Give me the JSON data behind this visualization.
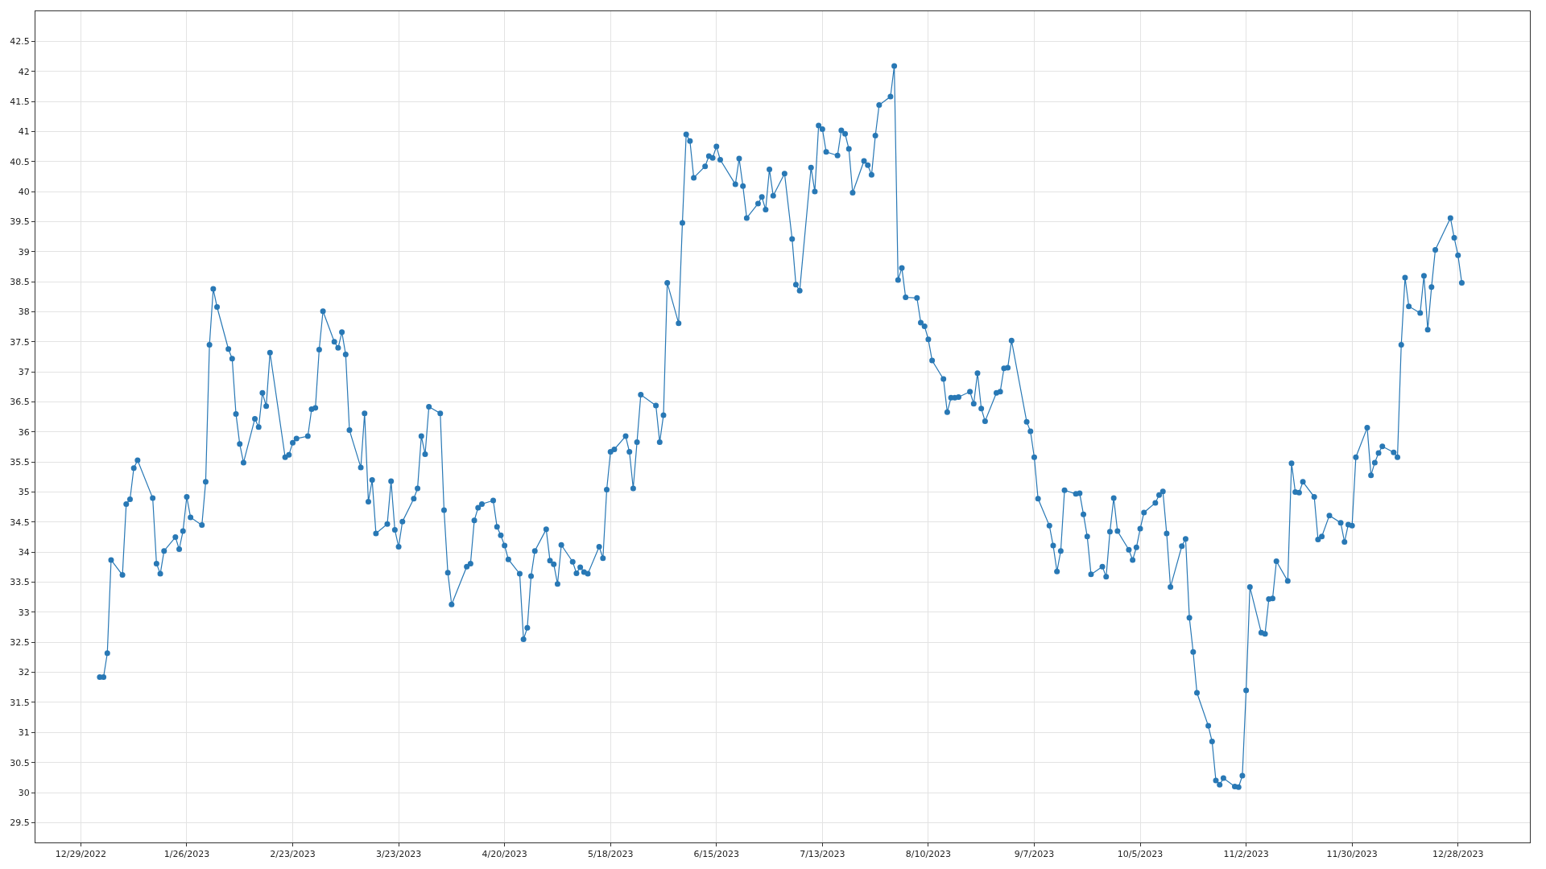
{
  "chart_data": {
    "type": "line",
    "marker": "circle",
    "line_style": "solid",
    "grid": true,
    "xlim": [
      "2022-12-17",
      "2024-01-16"
    ],
    "ylim": [
      29.17,
      43.0
    ],
    "xticks": [
      {
        "value": "2022-12-29",
        "label": "12/29/2022"
      },
      {
        "value": "2023-01-26",
        "label": "1/26/2023"
      },
      {
        "value": "2023-02-23",
        "label": "2/23/2023"
      },
      {
        "value": "2023-03-23",
        "label": "3/23/2023"
      },
      {
        "value": "2023-04-20",
        "label": "4/20/2023"
      },
      {
        "value": "2023-05-18",
        "label": "5/18/2023"
      },
      {
        "value": "2023-06-15",
        "label": "6/15/2023"
      },
      {
        "value": "2023-07-13",
        "label": "7/13/2023"
      },
      {
        "value": "2023-08-10",
        "label": "8/10/2023"
      },
      {
        "value": "2023-09-07",
        "label": "9/7/2023"
      },
      {
        "value": "2023-10-05",
        "label": "10/5/2023"
      },
      {
        "value": "2023-11-02",
        "label": "11/2/2023"
      },
      {
        "value": "2023-11-30",
        "label": "11/30/2023"
      },
      {
        "value": "2023-12-28",
        "label": "12/28/2023"
      }
    ],
    "yticks": [
      29.5,
      30,
      30.5,
      31,
      31.5,
      32,
      32.5,
      33,
      33.5,
      34,
      34.5,
      35,
      35.5,
      36,
      36.5,
      37,
      37.5,
      38,
      38.5,
      39,
      39.5,
      40,
      40.5,
      41,
      41.5,
      42,
      42.5
    ],
    "x": [
      "2023-01-03",
      "2023-01-04",
      "2023-01-05",
      "2023-01-06",
      "2023-01-09",
      "2023-01-10",
      "2023-01-11",
      "2023-01-12",
      "2023-01-13",
      "2023-01-17",
      "2023-01-18",
      "2023-01-19",
      "2023-01-20",
      "2023-01-23",
      "2023-01-24",
      "2023-01-25",
      "2023-01-26",
      "2023-01-27",
      "2023-01-30",
      "2023-01-31",
      "2023-02-01",
      "2023-02-02",
      "2023-02-03",
      "2023-02-06",
      "2023-02-07",
      "2023-02-08",
      "2023-02-09",
      "2023-02-10",
      "2023-02-13",
      "2023-02-14",
      "2023-02-15",
      "2023-02-16",
      "2023-02-17",
      "2023-02-21",
      "2023-02-22",
      "2023-02-23",
      "2023-02-24",
      "2023-02-27",
      "2023-02-28",
      "2023-03-01",
      "2023-03-02",
      "2023-03-03",
      "2023-03-06",
      "2023-03-07",
      "2023-03-08",
      "2023-03-09",
      "2023-03-10",
      "2023-03-13",
      "2023-03-14",
      "2023-03-15",
      "2023-03-16",
      "2023-03-17",
      "2023-03-20",
      "2023-03-21",
      "2023-03-22",
      "2023-03-23",
      "2023-03-24",
      "2023-03-27",
      "2023-03-28",
      "2023-03-29",
      "2023-03-30",
      "2023-03-31",
      "2023-04-03",
      "2023-04-04",
      "2023-04-05",
      "2023-04-06",
      "2023-04-10",
      "2023-04-11",
      "2023-04-12",
      "2023-04-13",
      "2023-04-14",
      "2023-04-17",
      "2023-04-18",
      "2023-04-19",
      "2023-04-20",
      "2023-04-21",
      "2023-04-24",
      "2023-04-25",
      "2023-04-26",
      "2023-04-27",
      "2023-04-28",
      "2023-05-01",
      "2023-05-02",
      "2023-05-03",
      "2023-05-04",
      "2023-05-05",
      "2023-05-08",
      "2023-05-09",
      "2023-05-10",
      "2023-05-11",
      "2023-05-12",
      "2023-05-15",
      "2023-05-16",
      "2023-05-17",
      "2023-05-18",
      "2023-05-19",
      "2023-05-22",
      "2023-05-23",
      "2023-05-24",
      "2023-05-25",
      "2023-05-26",
      "2023-05-30",
      "2023-05-31",
      "2023-06-01",
      "2023-06-02",
      "2023-06-05",
      "2023-06-06",
      "2023-06-07",
      "2023-06-08",
      "2023-06-09",
      "2023-06-12",
      "2023-06-13",
      "2023-06-14",
      "2023-06-15",
      "2023-06-16",
      "2023-06-20",
      "2023-06-21",
      "2023-06-22",
      "2023-06-23",
      "2023-06-26",
      "2023-06-27",
      "2023-06-28",
      "2023-06-29",
      "2023-06-30",
      "2023-07-03",
      "2023-07-05",
      "2023-07-06",
      "2023-07-07",
      "2023-07-10",
      "2023-07-11",
      "2023-07-12",
      "2023-07-13",
      "2023-07-14",
      "2023-07-17",
      "2023-07-18",
      "2023-07-19",
      "2023-07-20",
      "2023-07-21",
      "2023-07-24",
      "2023-07-25",
      "2023-07-26",
      "2023-07-27",
      "2023-07-28",
      "2023-07-31",
      "2023-08-01",
      "2023-08-02",
      "2023-08-03",
      "2023-08-04",
      "2023-08-07",
      "2023-08-08",
      "2023-08-09",
      "2023-08-10",
      "2023-08-11",
      "2023-08-14",
      "2023-08-15",
      "2023-08-16",
      "2023-08-17",
      "2023-08-18",
      "2023-08-21",
      "2023-08-22",
      "2023-08-23",
      "2023-08-24",
      "2023-08-25",
      "2023-08-28",
      "2023-08-29",
      "2023-08-30",
      "2023-08-31",
      "2023-09-01",
      "2023-09-05",
      "2023-09-06",
      "2023-09-07",
      "2023-09-08",
      "2023-09-11",
      "2023-09-12",
      "2023-09-13",
      "2023-09-14",
      "2023-09-15",
      "2023-09-18",
      "2023-09-19",
      "2023-09-20",
      "2023-09-21",
      "2023-09-22",
      "2023-09-25",
      "2023-09-26",
      "2023-09-27",
      "2023-09-28",
      "2023-09-29",
      "2023-10-02",
      "2023-10-03",
      "2023-10-04",
      "2023-10-05",
      "2023-10-06",
      "2023-10-09",
      "2023-10-10",
      "2023-10-11",
      "2023-10-12",
      "2023-10-13",
      "2023-10-16",
      "2023-10-17",
      "2023-10-18",
      "2023-10-19",
      "2023-10-20",
      "2023-10-23",
      "2023-10-24",
      "2023-10-25",
      "2023-10-26",
      "2023-10-27",
      "2023-10-30",
      "2023-10-31",
      "2023-11-01",
      "2023-11-02",
      "2023-11-03",
      "2023-11-06",
      "2023-11-07",
      "2023-11-08",
      "2023-11-09",
      "2023-11-10",
      "2023-11-13",
      "2023-11-14",
      "2023-11-15",
      "2023-11-16",
      "2023-11-17",
      "2023-11-20",
      "2023-11-21",
      "2023-11-22",
      "2023-11-24",
      "2023-11-27",
      "2023-11-28",
      "2023-11-29",
      "2023-11-30",
      "2023-12-01",
      "2023-12-04",
      "2023-12-05",
      "2023-12-06",
      "2023-12-07",
      "2023-12-08",
      "2023-12-11",
      "2023-12-12",
      "2023-12-13",
      "2023-12-14",
      "2023-12-15",
      "2023-12-18",
      "2023-12-19",
      "2023-12-20",
      "2023-12-21",
      "2023-12-22",
      "2023-12-26",
      "2023-12-27",
      "2023-12-28",
      "2023-12-29"
    ],
    "series": [
      {
        "color": "#2878b5",
        "values": [
          31.92,
          31.92,
          32.32,
          33.87,
          33.62,
          34.8,
          34.88,
          35.4,
          35.53,
          34.9,
          33.81,
          33.64,
          34.02,
          34.25,
          34.05,
          34.35,
          34.92,
          34.58,
          34.45,
          35.17,
          37.45,
          38.38,
          38.08,
          37.38,
          37.22,
          36.3,
          35.8,
          35.49,
          36.22,
          36.08,
          36.65,
          36.43,
          37.32,
          35.58,
          35.62,
          35.82,
          35.89,
          35.93,
          36.38,
          36.4,
          37.37,
          38.01,
          37.5,
          37.4,
          37.66,
          37.29,
          36.03,
          35.41,
          36.31,
          34.84,
          35.2,
          34.31,
          34.47,
          35.18,
          34.37,
          34.09,
          34.51,
          34.89,
          35.06,
          35.93,
          35.63,
          36.42,
          36.31,
          34.7,
          33.66,
          33.13,
          33.76,
          33.81,
          34.53,
          34.74,
          34.8,
          34.86,
          34.42,
          34.28,
          34.11,
          33.88,
          33.64,
          32.55,
          32.74,
          33.6,
          34.02,
          34.38,
          33.86,
          33.8,
          33.47,
          34.12,
          33.84,
          33.65,
          33.75,
          33.67,
          33.64,
          34.09,
          33.9,
          35.04,
          35.67,
          35.71,
          35.93,
          35.67,
          35.06,
          35.83,
          36.62,
          36.44,
          35.83,
          36.28,
          38.48,
          37.81,
          39.48,
          40.95,
          40.84,
          40.23,
          40.42,
          40.59,
          40.56,
          40.75,
          40.53,
          40.12,
          40.55,
          40.09,
          39.56,
          39.8,
          39.91,
          39.7,
          40.37,
          39.93,
          40.3,
          39.21,
          38.45,
          38.35,
          40.4,
          40.0,
          41.1,
          41.04,
          40.66,
          40.6,
          41.02,
          40.96,
          40.71,
          39.98,
          40.51,
          40.44,
          40.28,
          40.93,
          41.44,
          41.58,
          42.09,
          38.53,
          38.73,
          38.24,
          38.23,
          37.82,
          37.76,
          37.54,
          37.19,
          36.88,
          36.33,
          36.57,
          36.57,
          36.58,
          36.67,
          36.47,
          36.98,
          36.39,
          36.18,
          36.65,
          36.67,
          37.06,
          37.07,
          37.52,
          36.17,
          36.01,
          35.58,
          34.89,
          34.44,
          34.11,
          33.68,
          34.02,
          35.03,
          34.97,
          34.98,
          34.63,
          34.26,
          33.63,
          33.76,
          33.59,
          34.34,
          34.9,
          34.35,
          34.04,
          33.87,
          34.08,
          34.39,
          34.66,
          34.82,
          34.95,
          35.01,
          34.31,
          33.42,
          34.1,
          34.22,
          32.91,
          32.34,
          31.66,
          31.11,
          30.85,
          30.2,
          30.13,
          30.24,
          30.1,
          30.09,
          30.28,
          31.7,
          33.42,
          32.66,
          32.64,
          33.22,
          33.23,
          33.85,
          33.52,
          35.48,
          35.0,
          34.99,
          35.17,
          34.92,
          34.21,
          34.26,
          34.61,
          34.49,
          34.17,
          34.46,
          34.44,
          35.58,
          36.07,
          35.28,
          35.49,
          35.65,
          35.76,
          35.66,
          35.58,
          37.45,
          38.57,
          38.09,
          37.98,
          38.6,
          37.7,
          38.41,
          39.03,
          39.56,
          39.23,
          38.94,
          38.48
        ]
      }
    ]
  }
}
